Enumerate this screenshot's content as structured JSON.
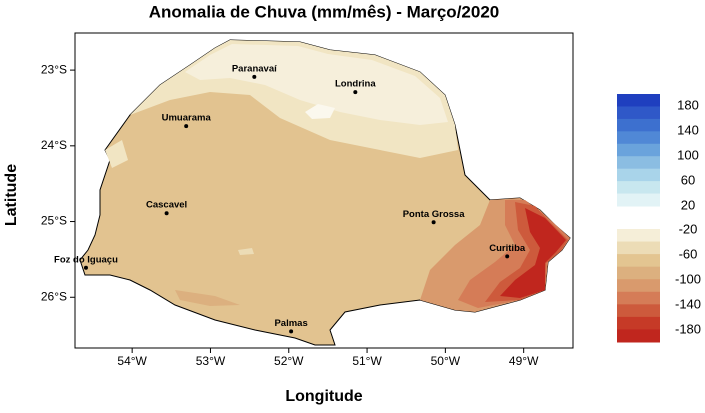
{
  "chart_data": {
    "type": "map",
    "title": "Anomalia de Chuva (mm/mês) - Março/2020",
    "x_label": "Longitude",
    "y_label": "Latitude",
    "xlim": [
      -54.73,
      -48.37
    ],
    "ylim": [
      -26.67,
      -22.51
    ],
    "xticks": [
      {
        "value": -54,
        "label": "54°W"
      },
      {
        "value": -53,
        "label": "53°W"
      },
      {
        "value": -52,
        "label": "52°W"
      },
      {
        "value": -51,
        "label": "51°W"
      },
      {
        "value": -50,
        "label": "50°W"
      },
      {
        "value": -49,
        "label": "49°W"
      }
    ],
    "yticks": [
      {
        "value": -23,
        "label": "23°S"
      },
      {
        "value": -24,
        "label": "24°S"
      },
      {
        "value": -25,
        "label": "25°S"
      },
      {
        "value": -26,
        "label": "26°S"
      }
    ],
    "cities": [
      {
        "name": "Paranavaí",
        "lon": -52.44,
        "lat": -23.09
      },
      {
        "name": "Londrina",
        "lon": -51.15,
        "lat": -23.29
      },
      {
        "name": "Umuarama",
        "lon": -53.31,
        "lat": -23.74
      },
      {
        "name": "Cascavel",
        "lon": -53.56,
        "lat": -24.89
      },
      {
        "name": "Ponta Grossa",
        "lon": -50.15,
        "lat": -25.01
      },
      {
        "name": "Curitiba",
        "lon": -49.21,
        "lat": -25.46
      },
      {
        "name": "Foz do Iguaçu",
        "lon": -54.59,
        "lat": -25.61
      },
      {
        "name": "Palmas",
        "lon": -51.97,
        "lat": -26.45
      }
    ],
    "colorbar_positive": {
      "ticks": [
        180,
        140,
        100,
        60,
        20
      ],
      "colors": [
        "#1f3fbf",
        "#2f58c8",
        "#3d70cf",
        "#5088d6",
        "#6aa3dc",
        "#8bbde2",
        "#a9d4ea",
        "#c8e7ef",
        "#e2f3f6"
      ]
    },
    "colorbar_negative": {
      "ticks": [
        -20,
        -60,
        -100,
        -140,
        -180
      ],
      "colors": [
        "#f5eed8",
        "#ecdcb6",
        "#e3c591",
        "#dcb07f",
        "#d99a6d",
        "#d57c57",
        "#cd5a3c",
        "#c63a27",
        "#c0261e"
      ]
    }
  }
}
